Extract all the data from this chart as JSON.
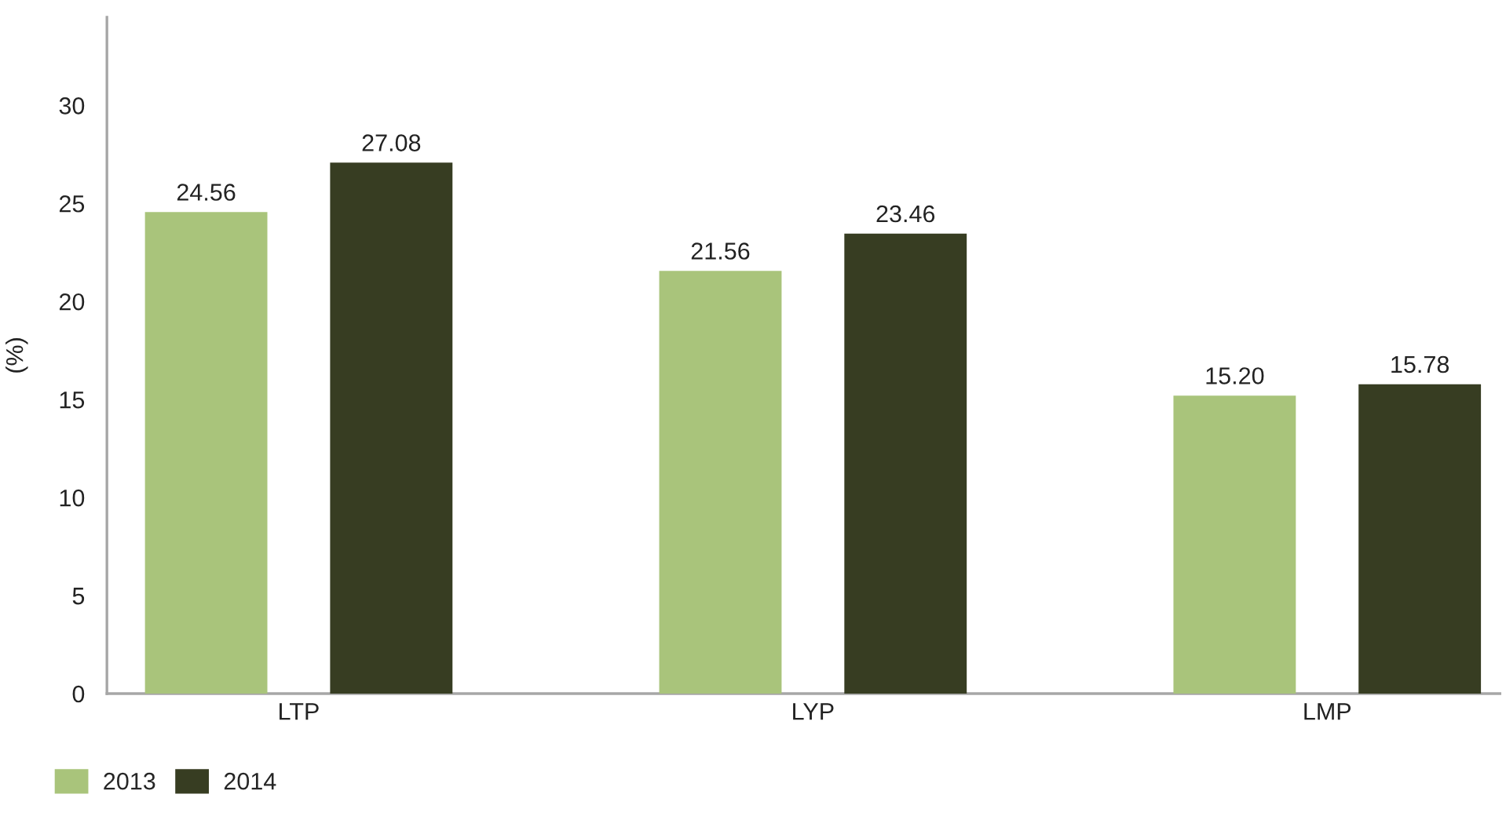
{
  "chart_data": {
    "type": "bar",
    "ylabel": "(%)",
    "categories": [
      "LTP",
      "LYP",
      "LMP"
    ],
    "series": [
      {
        "name": "2013",
        "color": "#a9c47b",
        "values": [
          24.56,
          21.56,
          15.2
        ],
        "value_labels": [
          "24.56",
          "21.56",
          "15.20"
        ]
      },
      {
        "name": "2014",
        "color": "#373d22",
        "values": [
          27.08,
          23.46,
          15.78
        ],
        "value_labels": [
          "27.08",
          "23.46",
          "15.78"
        ]
      }
    ],
    "ylim": [
      0,
      34.5
    ],
    "yticks": [
      0,
      5,
      10,
      15,
      20,
      25,
      30
    ],
    "grid": false,
    "legend": "bottom left"
  }
}
